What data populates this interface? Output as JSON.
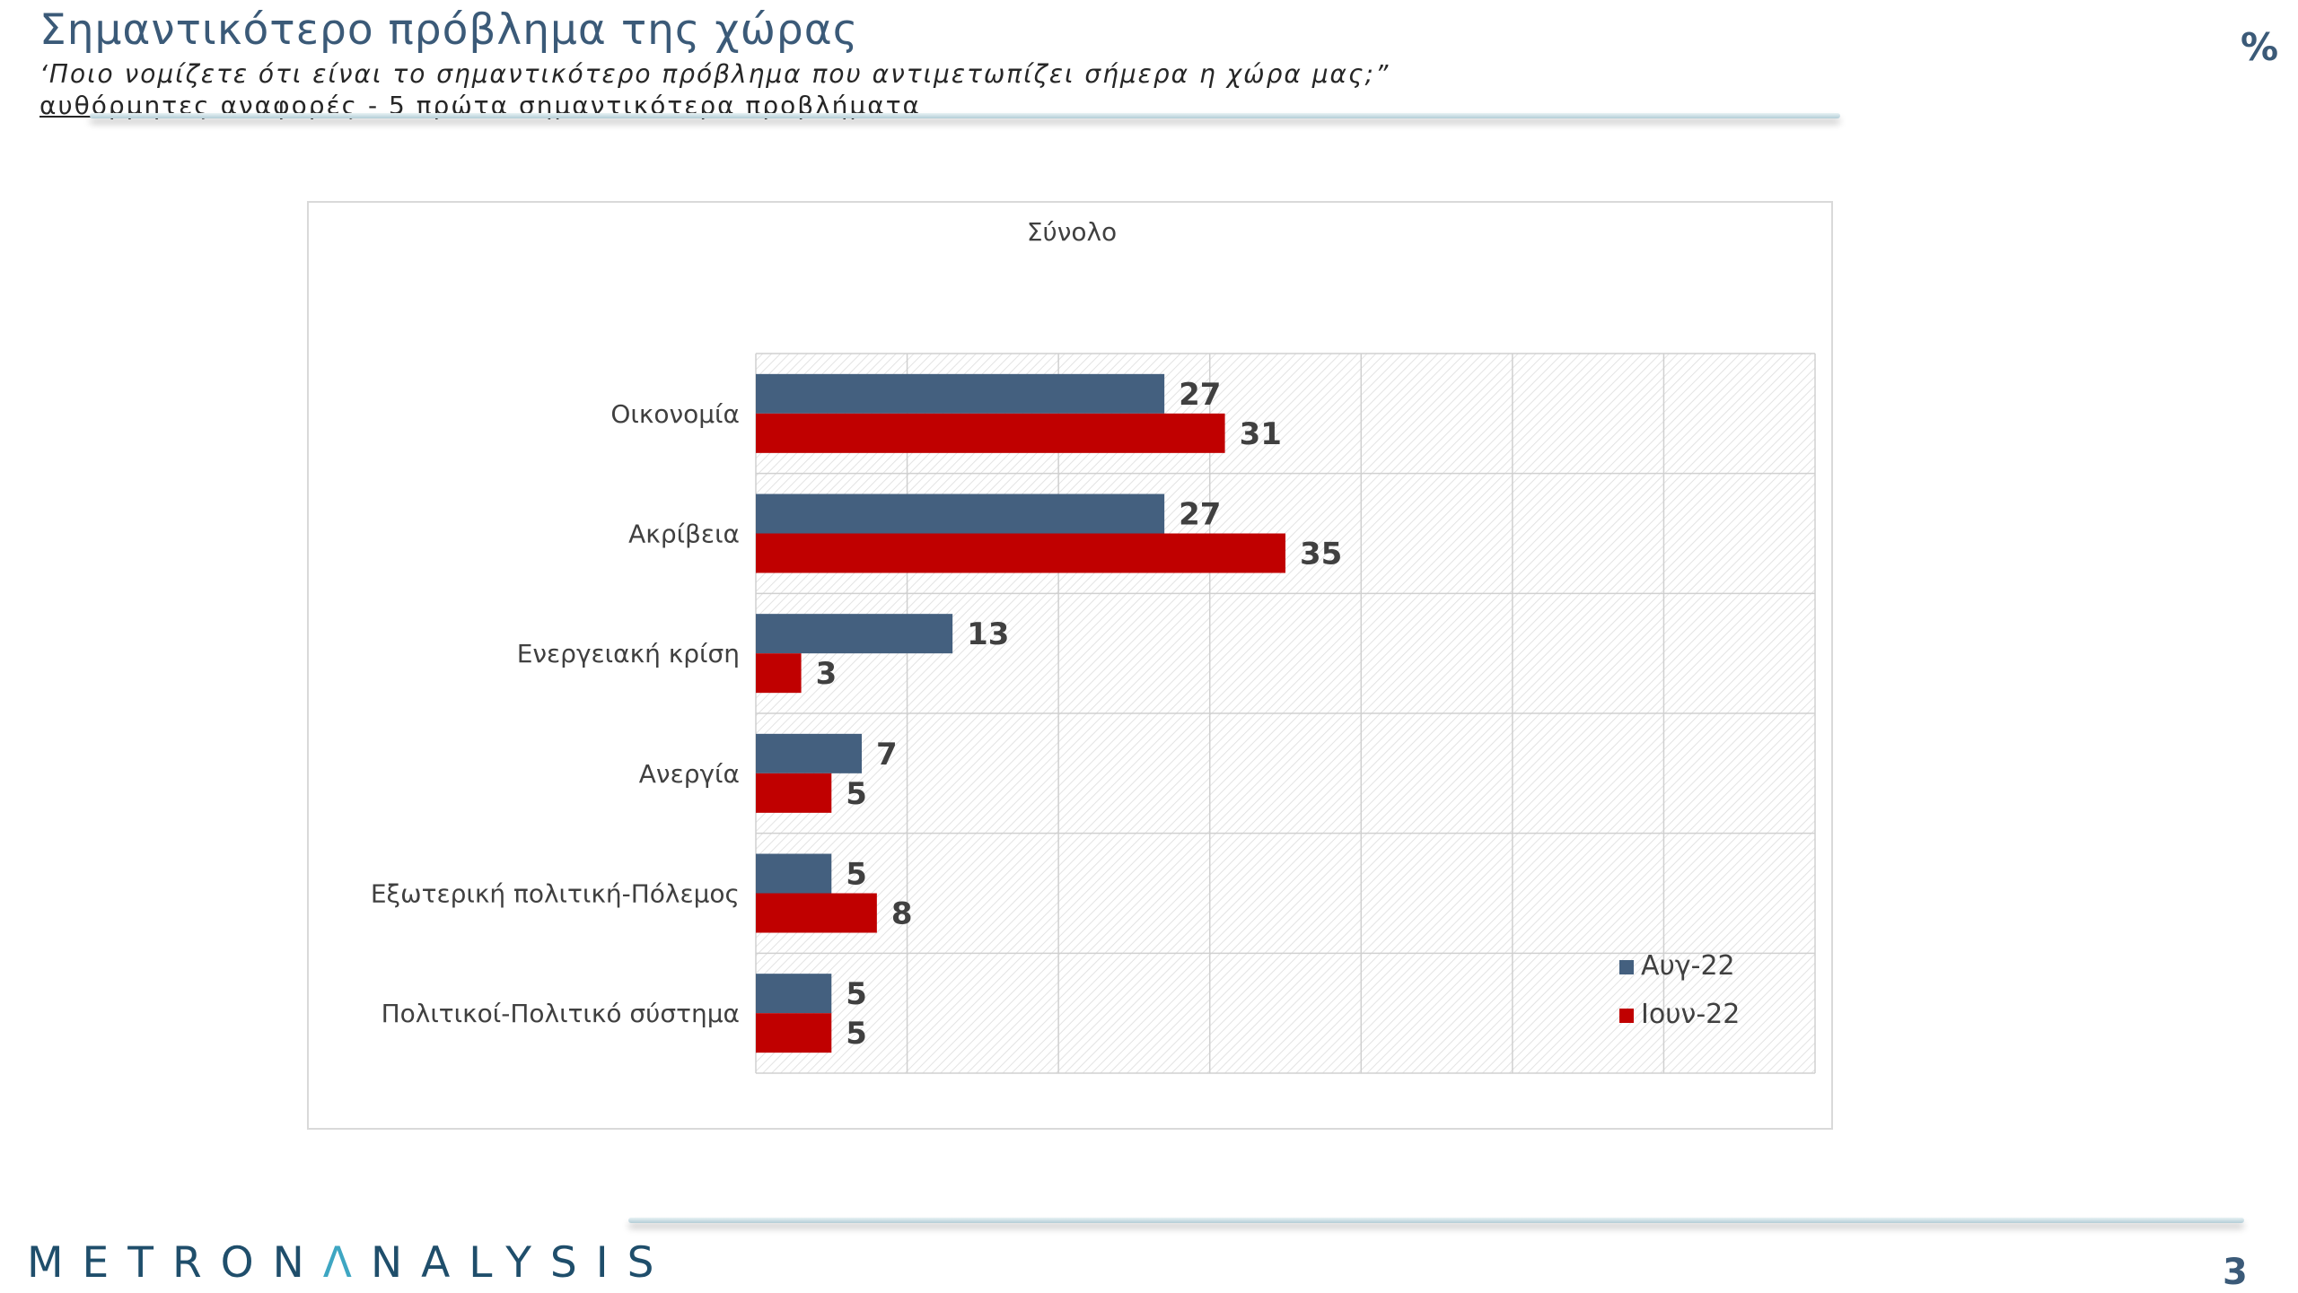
{
  "header": {
    "title": "Σημαντικότερο πρόβλημα της χώρας",
    "subtitle": "‘Ποιο νομίζετε ότι  είναι το σημαντικότερο πρόβλημα που αντιμετωπίζει σήμερα η χώρα μας;”",
    "note": "αυθόρμητες αναφορές - 5 πρώτα σημαντικότερα προβλήματα",
    "unit": "%"
  },
  "footer": {
    "logo_main": "METRON",
    "logo_accent": "Λ",
    "logo_rest": "NALYSIS",
    "page_number": "3"
  },
  "colors": {
    "series_aug": "#44607f",
    "series_jun": "#c00000",
    "title": "#3b5a78",
    "logo_accent": "#3ea6c2"
  },
  "chart_data": {
    "type": "bar",
    "orientation": "horizontal",
    "title": "Σύνολο",
    "categories": [
      "Οικονομία",
      "Ακρίβεια",
      "Ενεργειακή κρίση",
      "Ανεργία",
      "Εξωτερική πολιτική-Πόλεμος",
      "Πολιτικοί-Πολιτικό σύστημα"
    ],
    "series": [
      {
        "name": "Αυγ-22",
        "values": [
          27,
          27,
          13,
          7,
          5,
          5
        ],
        "color": "#44607f"
      },
      {
        "name": "Ιουν-22",
        "values": [
          31,
          35,
          3,
          5,
          8,
          5
        ],
        "color": "#c00000"
      }
    ],
    "xlim": [
      0,
      70
    ],
    "grid": true,
    "legend_position": "bottom-right"
  }
}
